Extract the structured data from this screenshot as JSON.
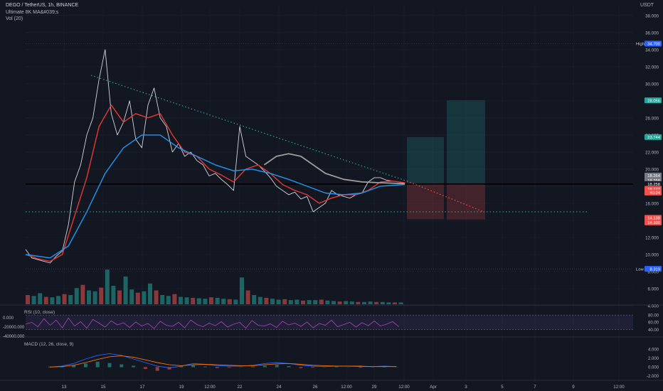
{
  "header": {
    "symbol": "DEGO / TetherUS, 1h, BINANCE",
    "indicator_1": "Ultimate 8K MA&#039;s",
    "indicator_2": "Vol (20)",
    "currency": "USDT"
  },
  "rsi_label": "RSI (10, close)",
  "macd_label": "MACD (12, 26, close, 9)",
  "chart_data": [
    {
      "type": "line",
      "pane": "price",
      "y_ticks": [
        "38.000",
        "36.000",
        "34.000",
        "32.000",
        "30.000",
        "28.000",
        "26.000",
        "24.000",
        "22.000",
        "20.000",
        "18.000",
        "16.000",
        "14.000",
        "12.000",
        "10.000",
        "8.000",
        "6.000",
        "4.000"
      ],
      "ylim": [
        4,
        38
      ],
      "x_ticks": [
        "13",
        "15",
        "17",
        "19",
        "12:00",
        "22",
        "24",
        "26",
        "12:00",
        "29",
        "12:00",
        "Apr",
        "3",
        "5",
        "7",
        "9",
        "12:00"
      ],
      "price_badges": [
        {
          "label": "High",
          "value": "34.700",
          "color": "#2962ff",
          "y": 34.7
        },
        {
          "label": "",
          "value": "28.056",
          "color": "#26a69a",
          "y": 28.056
        },
        {
          "label": "",
          "value": "23.744",
          "color": "#26a69a",
          "y": 23.744
        },
        {
          "label": "",
          "value": "18.264",
          "color": "#787b86",
          "y": 19.25
        },
        {
          "label": "",
          "value": "18.258",
          "color": "#787b86",
          "y": 18.7
        },
        {
          "label": "",
          "value": "18.258",
          "color": "#131722",
          "y": 18.258
        },
        {
          "label": "",
          "value": "18.127",
          "color": "#ef5350",
          "y": 17.7
        },
        {
          "label": "",
          "value": "40:24",
          "color": "#ef5350",
          "y": 17.25
        },
        {
          "label": "",
          "value": "14.138",
          "color": "#ef5350",
          "y": 14.3
        },
        {
          "label": "",
          "value": "14.100",
          "color": "#ef5350",
          "y": 13.75
        },
        {
          "label": "Low",
          "value": "8.319",
          "color": "#2962ff",
          "y": 8.319
        }
      ],
      "series": [
        {
          "kind": "price",
          "color": "#d1d4dc",
          "points": [
            [
              0,
              10.6
            ],
            [
              2,
              9.6
            ],
            [
              4,
              9.4
            ],
            [
              6,
              9.2
            ],
            [
              8,
              9.0
            ],
            [
              10,
              9.8
            ],
            [
              12,
              10.4
            ],
            [
              14,
              13.5
            ],
            [
              16,
              18.5
            ],
            [
              18,
              20.5
            ],
            [
              20,
              24.0
            ],
            [
              22,
              26.0
            ],
            [
              24,
              30.5
            ],
            [
              26,
              34.0
            ],
            [
              28,
              26.5
            ],
            [
              30,
              24.0
            ],
            [
              32,
              25.5
            ],
            [
              34,
              28.0
            ],
            [
              36,
              23.5
            ],
            [
              38,
              22.5
            ],
            [
              40,
              27.5
            ],
            [
              42,
              29.5
            ],
            [
              44,
              26.0
            ],
            [
              46,
              25.0
            ],
            [
              48,
              22.0
            ],
            [
              50,
              23.0
            ],
            [
              52,
              21.5
            ],
            [
              54,
              22.0
            ],
            [
              56,
              21.0
            ],
            [
              58,
              20.5
            ],
            [
              60,
              19.2
            ],
            [
              62,
              19.5
            ],
            [
              64,
              18.8
            ],
            [
              66,
              18.2
            ],
            [
              68,
              17.5
            ],
            [
              70,
              25.0
            ],
            [
              72,
              21.5
            ],
            [
              74,
              21.0
            ],
            [
              76,
              20.5
            ],
            [
              78,
              19.8
            ],
            [
              80,
              19.0
            ],
            [
              82,
              18.0
            ],
            [
              84,
              17.5
            ],
            [
              86,
              17.0
            ],
            [
              88,
              17.3
            ],
            [
              90,
              16.5
            ],
            [
              92,
              16.8
            ],
            [
              94,
              15.0
            ],
            [
              96,
              15.5
            ],
            [
              98,
              16.0
            ],
            [
              100,
              17.5
            ],
            [
              102,
              17.0
            ],
            [
              104,
              16.8
            ],
            [
              106,
              16.6
            ],
            [
              108,
              17.0
            ],
            [
              110,
              17.2
            ],
            [
              112,
              18.5
            ],
            [
              114,
              19.0
            ],
            [
              116,
              19.0
            ],
            [
              118,
              18.7
            ],
            [
              120,
              18.6
            ],
            [
              122,
              18.5
            ],
            [
              124,
              18.3
            ]
          ]
        },
        {
          "kind": "ma_fast",
          "color": "#e53935",
          "points": [
            [
              0,
              10.0
            ],
            [
              4,
              9.5
            ],
            [
              8,
              9.2
            ],
            [
              12,
              10.0
            ],
            [
              16,
              14.5
            ],
            [
              20,
              19.0
            ],
            [
              24,
              25.0
            ],
            [
              28,
              27.5
            ],
            [
              32,
              25.5
            ],
            [
              36,
              26.5
            ],
            [
              40,
              26.0
            ],
            [
              44,
              26.5
            ],
            [
              48,
              24.0
            ],
            [
              52,
              22.0
            ],
            [
              56,
              21.5
            ],
            [
              60,
              20.0
            ],
            [
              64,
              19.3
            ],
            [
              68,
              18.5
            ],
            [
              72,
              20.0
            ],
            [
              76,
              20.5
            ],
            [
              80,
              19.5
            ],
            [
              84,
              18.2
            ],
            [
              88,
              17.5
            ],
            [
              92,
              17.0
            ],
            [
              96,
              16.0
            ],
            [
              100,
              16.6
            ],
            [
              104,
              17.0
            ],
            [
              108,
              17.0
            ],
            [
              112,
              17.5
            ],
            [
              116,
              18.5
            ],
            [
              120,
              18.6
            ],
            [
              124,
              18.4
            ]
          ]
        },
        {
          "kind": "ma_mid",
          "color": "#2196f3",
          "points": [
            [
              0,
              10.0
            ],
            [
              8,
              9.6
            ],
            [
              14,
              11.0
            ],
            [
              20,
              15.0
            ],
            [
              26,
              19.5
            ],
            [
              32,
              22.5
            ],
            [
              38,
              24.0
            ],
            [
              44,
              24.0
            ],
            [
              50,
              22.5
            ],
            [
              56,
              21.5
            ],
            [
              62,
              20.5
            ],
            [
              68,
              19.8
            ],
            [
              74,
              20.0
            ],
            [
              80,
              19.5
            ],
            [
              86,
              18.8
            ],
            [
              92,
              18.0
            ],
            [
              98,
              17.2
            ],
            [
              104,
              17.0
            ],
            [
              110,
              17.2
            ],
            [
              116,
              18.0
            ],
            [
              124,
              18.2
            ]
          ]
        },
        {
          "kind": "ma_slow",
          "color": "#9e9e9e",
          "points": [
            [
              78,
              20.5
            ],
            [
              82,
              21.5
            ],
            [
              86,
              21.8
            ],
            [
              90,
              21.5
            ],
            [
              94,
              20.5
            ],
            [
              98,
              19.5
            ],
            [
              104,
              18.8
            ],
            [
              110,
              18.5
            ],
            [
              116,
              18.4
            ],
            [
              124,
              18.3
            ]
          ]
        }
      ],
      "volume": [
        2.0,
        1.8,
        2.4,
        1.6,
        1.5,
        1.8,
        2.2,
        2.0,
        3.5,
        4.2,
        3.0,
        2.8,
        3.6,
        7.5,
        4.0,
        3.0,
        6.0,
        3.2,
        2.5,
        2.8,
        4.5,
        3.0,
        2.0,
        1.8,
        2.2,
        1.6,
        1.5,
        1.4,
        1.3,
        1.2,
        1.5,
        1.4,
        1.2,
        1.1,
        1.0,
        5.8,
        3.0,
        2.0,
        1.6,
        1.4,
        1.2,
        1.0,
        1.1,
        0.9,
        1.0,
        0.8,
        0.9,
        0.9,
        1.0,
        0.8,
        0.7,
        0.6,
        0.7,
        0.6,
        0.5,
        0.5,
        0.6,
        0.5,
        0.5,
        0.4,
        0.4,
        0.4
      ],
      "rsi": {
        "y_ticks": [
          "80.00",
          "60.00",
          "40.00"
        ],
        "left_ticks": [
          "0.000",
          "-20000.000",
          "-40000.000"
        ],
        "band": [
          40,
          80
        ],
        "values": [
          55,
          60,
          48,
          70,
          52,
          66,
          45,
          72,
          50,
          62,
          44,
          68,
          58,
          47,
          64,
          53,
          59,
          46,
          61,
          50,
          57,
          43,
          63,
          52,
          49,
          60,
          45,
          66,
          54,
          48,
          58,
          51,
          62,
          47,
          55,
          60,
          44,
          65,
          52,
          50,
          56,
          46,
          63,
          53,
          58,
          49,
          61,
          45,
          57,
          52,
          66,
          48,
          54,
          60,
          47,
          59,
          51,
          64,
          50,
          55,
          62,
          48
        ]
      },
      "macd": {
        "y_ticks": [
          "4.000",
          "2.000",
          "0.000",
          "-2.000"
        ],
        "hist": [
          0.1,
          0.2,
          0.4,
          0.8,
          1.2,
          0.9,
          0.6,
          0.3,
          -0.4,
          -0.8,
          -0.5,
          0.2,
          0.4,
          0.1,
          -0.2,
          -0.1,
          0.0,
          0.1,
          0.3,
          0.5,
          0.2,
          -0.2,
          -0.1,
          0.0,
          0.1,
          0.0,
          -0.1,
          0.0,
          0.1,
          0.0
        ],
        "macd": [
          0.0,
          0.2,
          0.8,
          1.8,
          2.6,
          3.0,
          2.6,
          1.8,
          1.0,
          0.2,
          -0.2,
          0.2,
          0.8,
          0.6,
          0.3,
          0.2,
          0.2,
          0.4,
          0.8,
          1.0,
          0.8,
          0.4,
          0.2,
          0.1,
          0.2,
          0.2,
          0.1,
          0.1,
          0.2,
          0.1
        ],
        "signal": [
          0.0,
          0.1,
          0.4,
          1.0,
          1.7,
          2.3,
          2.5,
          2.2,
          1.6,
          1.0,
          0.5,
          0.3,
          0.5,
          0.6,
          0.5,
          0.4,
          0.3,
          0.3,
          0.5,
          0.7,
          0.8,
          0.6,
          0.4,
          0.3,
          0.2,
          0.2,
          0.2,
          0.1,
          0.1,
          0.1
        ]
      }
    }
  ]
}
